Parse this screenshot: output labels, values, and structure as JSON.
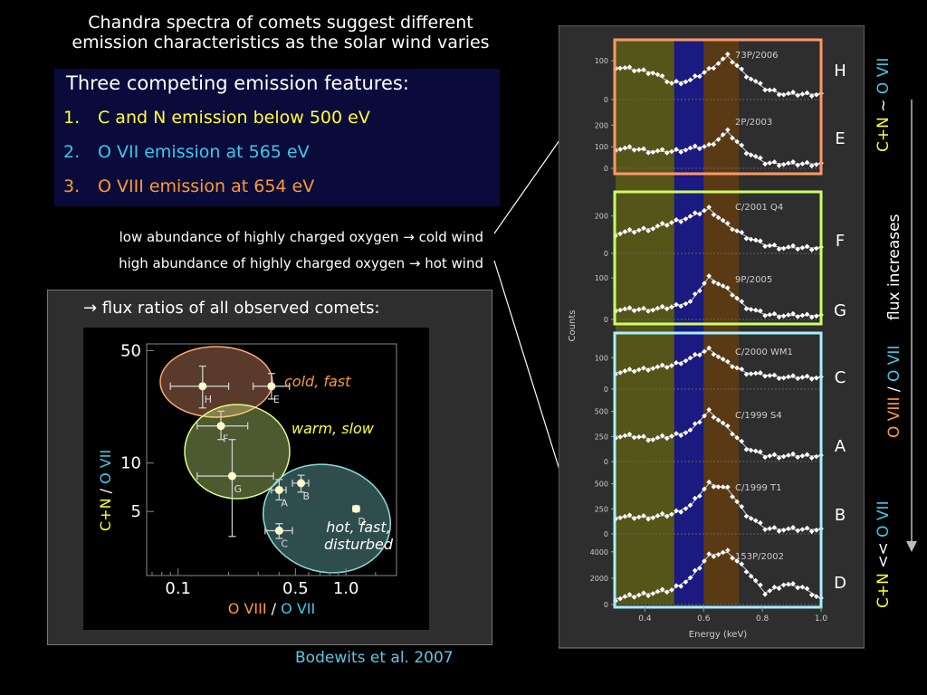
{
  "title": {
    "line1": "Chandra spectra of comets suggest different",
    "line2": "emission characteristics as the solar wind varies"
  },
  "features": {
    "heading": "Three competing emission features:",
    "items": [
      {
        "number": "1.",
        "text": "C and N emission below 500 eV",
        "color": "#ffff33"
      },
      {
        "number": "2.",
        "text": "O VII emission at 565 eV",
        "color": "#3fc8e8"
      },
      {
        "number": "3.",
        "text": "O VIII emission at 654 eV",
        "color": "#ff9a2e"
      }
    ]
  },
  "abundance": {
    "low": "low abundance of highly charged oxygen → cold wind",
    "high": "high abundance of highly charged oxygen → hot wind"
  },
  "ratio_heading": "→ flux ratios of all observed comets:",
  "citation": "Bodewits et al. 2007",
  "colors": {
    "yellow": "#ffff33",
    "cyan": "#3fc8e8",
    "orange": "#ff9a2e",
    "band_cn": "#55551a",
    "band_o7": "#1a1a80",
    "band_o8": "#5a3a15",
    "box_he": "#ff9966",
    "box_fg": "#ccff66",
    "box_cabd": "#aaeeff"
  },
  "right_labels": {
    "top_cn": "C+N",
    "top_sym": " ~ ",
    "top_o7": "O VII",
    "flux_increases": "flux increases",
    "mid_o8": "O VIII",
    "mid_sep": " / ",
    "mid_o7": "O VII",
    "bottom_cn": "C+N",
    "bottom_sym": " << ",
    "bottom_o7": "O VII"
  },
  "chart_data": [
    {
      "type": "scatter",
      "xlabel": "O VIII / O VII",
      "ylabel": "C+N / O VII",
      "x_scale": "log",
      "y_scale": "log",
      "xlim": [
        0.065,
        2.0
      ],
      "ylim": [
        2.0,
        55
      ],
      "x_ticks": [
        0.1,
        0.5,
        1.0
      ],
      "x_tick_labels": [
        "0.1",
        "0.5",
        "1.0"
      ],
      "y_ticks": [
        5,
        10,
        50
      ],
      "y_tick_labels": [
        "5",
        "10",
        "50"
      ],
      "points": [
        {
          "label": "H",
          "x": 0.14,
          "y": 30,
          "xerr": [
            0.09,
            0.2
          ],
          "yerr": [
            22,
            40
          ]
        },
        {
          "label": "E",
          "x": 0.36,
          "y": 30,
          "xerr": [
            0.28,
            0.46
          ],
          "yerr": [
            25,
            36
          ]
        },
        {
          "label": "F",
          "x": 0.18,
          "y": 17,
          "xerr": [
            0.13,
            0.26
          ],
          "yerr": [
            14,
            21
          ]
        },
        {
          "label": "G",
          "x": 0.21,
          "y": 8.3,
          "xerr": [
            0.13,
            0.37
          ],
          "yerr": [
            3.5,
            14
          ]
        },
        {
          "label": "A",
          "x": 0.4,
          "y": 6.8,
          "xerr": [
            0.36,
            0.44
          ],
          "yerr": [
            5.9,
            7.9
          ]
        },
        {
          "label": "B",
          "x": 0.54,
          "y": 7.5,
          "xerr": [
            0.48,
            0.6
          ],
          "yerr": [
            6.6,
            8.4
          ]
        },
        {
          "label": "C",
          "x": 0.4,
          "y": 3.8,
          "xerr": [
            0.33,
            0.48
          ],
          "yerr": [
            3.4,
            4.2
          ]
        },
        {
          "label": "D",
          "x": 1.15,
          "y": 5.2,
          "xerr": [
            1.1,
            1.2
          ],
          "yerr": [
            5.0,
            5.4
          ]
        }
      ],
      "regions": [
        {
          "label": "cold, fast",
          "color": "#ffa77a"
        },
        {
          "label": "warm, slow",
          "color": "#ddff88"
        },
        {
          "label": "hot, fast, disturbed",
          "color": "#88dddd"
        }
      ]
    },
    {
      "type": "line",
      "xlabel": "Energy (keV)",
      "ylabel": "Counts",
      "xlim": [
        0.3,
        1.0
      ],
      "x_ticks": [
        0.4,
        0.6,
        0.8,
        1.0
      ],
      "x_tick_labels": [
        "0.4",
        "0.6",
        "0.8",
        "1.0"
      ],
      "bands": [
        {
          "name": "C and N",
          "x_range": [
            0.3,
            0.5
          ]
        },
        {
          "name": "O VII",
          "x_range": [
            0.5,
            0.6
          ]
        },
        {
          "name": "O VIII",
          "x_range": [
            0.6,
            0.72
          ]
        }
      ],
      "panels": [
        {
          "name": "73P/2006",
          "letter": "H",
          "ymax": 140,
          "y_ticks": [
            0,
            100
          ],
          "peak": 0.57,
          "base": [
            0.6,
            0.55,
            0.5,
            0.3,
            0.35,
            0.55,
            0.8,
            0.45,
            0.2,
            0.1,
            0.1,
            0.1
          ]
        },
        {
          "name": "2P/2003",
          "letter": "E",
          "ymax": 260,
          "y_ticks": [
            0,
            100,
            200
          ],
          "peak": 0.6,
          "base": [
            0.35,
            0.35,
            0.3,
            0.3,
            0.35,
            0.4,
            0.65,
            0.3,
            0.1,
            0.08,
            0.08,
            0.08
          ]
        },
        {
          "name": "C/2001 Q4",
          "letter": "F",
          "ymax": 300,
          "y_ticks": [
            0,
            200
          ],
          "peak": 0.57,
          "base": [
            0.35,
            0.4,
            0.45,
            0.55,
            0.65,
            0.8,
            0.5,
            0.3,
            0.15,
            0.1,
            0.1,
            0.1
          ]
        },
        {
          "name": "9P/2005",
          "letter": "G",
          "ymax": 120,
          "y_ticks": [
            0,
            100
          ],
          "peak": 0.57,
          "base": [
            0.2,
            0.2,
            0.2,
            0.25,
            0.35,
            0.85,
            0.6,
            0.25,
            0.1,
            0.08,
            0.08,
            0.08
          ]
        },
        {
          "name": "C/2000 WM1",
          "letter": "C",
          "ymax": 150,
          "y_ticks": [
            0,
            100
          ],
          "peak": 0.56,
          "base": [
            0.35,
            0.4,
            0.45,
            0.5,
            0.65,
            0.85,
            0.55,
            0.35,
            0.3,
            0.25,
            0.25,
            0.25
          ]
        },
        {
          "name": "C/1999 S4",
          "letter": "A",
          "ymax": 560,
          "y_ticks": [
            0,
            250,
            500
          ],
          "peak": 0.56,
          "base": [
            0.45,
            0.45,
            0.4,
            0.45,
            0.55,
            0.9,
            0.6,
            0.25,
            0.1,
            0.1,
            0.1,
            0.1
          ]
        },
        {
          "name": "C/1999 T1",
          "letter": "B",
          "ymax": 560,
          "y_ticks": [
            0,
            250,
            500
          ],
          "peak": 0.57,
          "base": [
            0.3,
            0.3,
            0.3,
            0.35,
            0.5,
            0.9,
            0.8,
            0.35,
            0.1,
            0.08,
            0.08,
            0.08
          ]
        },
        {
          "name": "153P/2002",
          "letter": "D",
          "ymax": 4400,
          "y_ticks": [
            0,
            2000,
            4000
          ],
          "peak": 0.6,
          "base": [
            0.1,
            0.15,
            0.2,
            0.25,
            0.45,
            0.85,
            0.9,
            0.6,
            0.2,
            0.35,
            0.3,
            0.1
          ]
        }
      ]
    }
  ]
}
